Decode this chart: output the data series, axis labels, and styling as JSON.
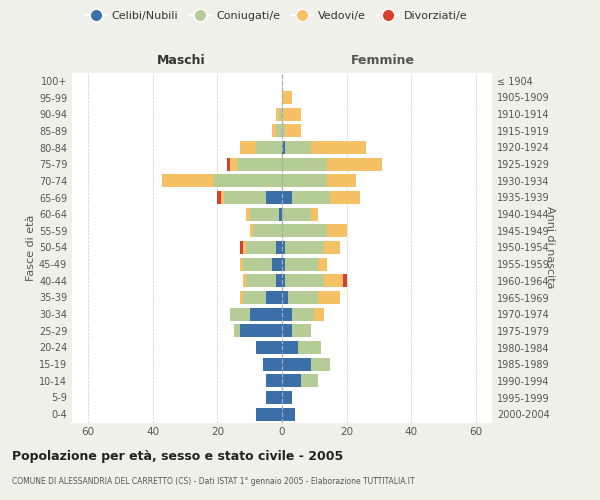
{
  "age_groups": [
    "100+",
    "95-99",
    "90-94",
    "85-89",
    "80-84",
    "75-79",
    "70-74",
    "65-69",
    "60-64",
    "55-59",
    "50-54",
    "45-49",
    "40-44",
    "35-39",
    "30-34",
    "25-29",
    "20-24",
    "15-19",
    "10-14",
    "5-9",
    "0-4"
  ],
  "birth_years": [
    "≤ 1904",
    "1905-1909",
    "1910-1914",
    "1915-1919",
    "1920-1924",
    "1925-1929",
    "1930-1934",
    "1935-1939",
    "1940-1944",
    "1945-1949",
    "1950-1954",
    "1955-1959",
    "1960-1964",
    "1965-1969",
    "1970-1974",
    "1975-1979",
    "1980-1984",
    "1985-1989",
    "1990-1994",
    "1995-1999",
    "2000-2004"
  ],
  "maschi": {
    "celibi": [
      0,
      0,
      0,
      0,
      0,
      0,
      0,
      5,
      1,
      0,
      2,
      3,
      2,
      5,
      10,
      13,
      8,
      6,
      5,
      5,
      8
    ],
    "coniugati": [
      0,
      0,
      1,
      2,
      8,
      14,
      21,
      13,
      9,
      9,
      9,
      9,
      9,
      7,
      6,
      2,
      0,
      0,
      0,
      0,
      0
    ],
    "vedovi": [
      0,
      0,
      1,
      1,
      5,
      2,
      16,
      1,
      1,
      1,
      1,
      1,
      1,
      1,
      0,
      0,
      0,
      0,
      0,
      0,
      0
    ],
    "divorziati": [
      0,
      0,
      0,
      0,
      0,
      1,
      0,
      1,
      0,
      0,
      1,
      0,
      0,
      0,
      0,
      0,
      0,
      0,
      0,
      0,
      0
    ]
  },
  "femmine": {
    "nubili": [
      0,
      0,
      0,
      0,
      1,
      0,
      0,
      3,
      0,
      0,
      1,
      1,
      1,
      2,
      3,
      3,
      5,
      9,
      6,
      3,
      4
    ],
    "coniugate": [
      0,
      0,
      0,
      1,
      8,
      14,
      14,
      12,
      9,
      14,
      12,
      10,
      12,
      9,
      7,
      6,
      7,
      6,
      5,
      0,
      0
    ],
    "vedove": [
      0,
      3,
      6,
      5,
      17,
      17,
      9,
      9,
      2,
      6,
      5,
      3,
      6,
      7,
      3,
      0,
      0,
      0,
      0,
      0,
      0
    ],
    "divorziate": [
      0,
      0,
      0,
      0,
      0,
      0,
      0,
      0,
      0,
      0,
      0,
      0,
      1,
      0,
      0,
      0,
      0,
      0,
      0,
      0,
      0
    ]
  },
  "colors": {
    "celibi": "#3a6fa8",
    "coniugati": "#b5cc96",
    "vedovi": "#f5c164",
    "divorziati": "#d93d2b"
  },
  "xlim": 65,
  "title": "Popolazione per età, sesso e stato civile - 2005",
  "subtitle": "COMUNE DI ALESSANDRIA DEL CARRETTO (CS) - Dati ISTAT 1° gennaio 2005 - Elaborazione TUTTITALIA.IT",
  "xlabel_left": "Maschi",
  "xlabel_right": "Femmine",
  "ylabel_left": "Fasce di età",
  "ylabel_right": "Anni di nascita",
  "bg_color": "#f0f0eb",
  "plot_bg": "#ffffff"
}
